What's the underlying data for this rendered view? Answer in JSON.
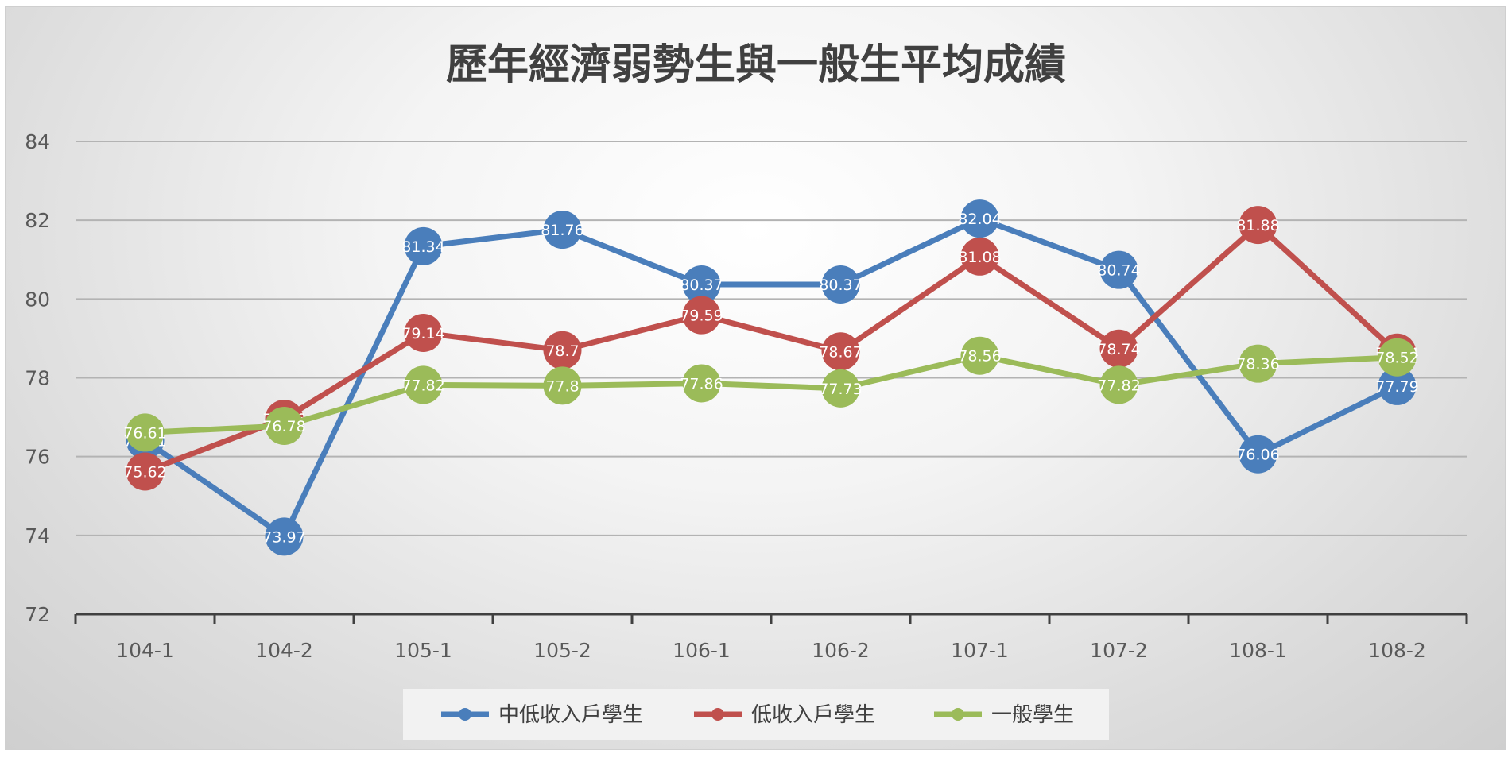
{
  "chart_data": {
    "type": "line",
    "title": "歷年經濟弱勢生與一般生平均成績",
    "xlabel": "",
    "ylabel": "",
    "ylim": [
      72,
      84
    ],
    "yticks": [
      72,
      74,
      76,
      78,
      80,
      82,
      84
    ],
    "grid": true,
    "legend_position": "bottom",
    "categories": [
      "104-1",
      "104-2",
      "105-1",
      "105-2",
      "106-1",
      "106-2",
      "107-1",
      "107-2",
      "108-1",
      "108-2"
    ],
    "series": [
      {
        "name": "中低收入戶學生",
        "color": "#4a7ebb",
        "values": [
          76.41,
          73.97,
          81.34,
          81.76,
          80.37,
          80.37,
          82.04,
          80.74,
          76.06,
          77.79
        ],
        "labels": [
          "76.41",
          "73.97",
          "81.34",
          "81.76",
          "80.37",
          "80.37",
          "82.04",
          "80.74",
          "76.06",
          "77.79"
        ]
      },
      {
        "name": "低收入戶學生",
        "color": "#c0504d",
        "values": [
          75.62,
          76.96,
          79.14,
          78.7,
          79.59,
          78.67,
          81.08,
          78.74,
          81.88,
          78.64
        ],
        "labels": [
          "75.62",
          "76.96",
          "79.14",
          "78.7",
          "79.59",
          "78.67",
          "81.08",
          "78.74",
          "81.88",
          "78.64"
        ]
      },
      {
        "name": "一般學生",
        "color": "#9bbb59",
        "values": [
          76.61,
          76.78,
          77.82,
          77.8,
          77.86,
          77.73,
          78.56,
          77.82,
          78.36,
          78.52
        ],
        "labels": [
          "76.61",
          "76.78",
          "77.82",
          "77.8",
          "77.86",
          "77.73",
          "78.56",
          "77.82",
          "78.36",
          "78.52"
        ]
      }
    ]
  }
}
